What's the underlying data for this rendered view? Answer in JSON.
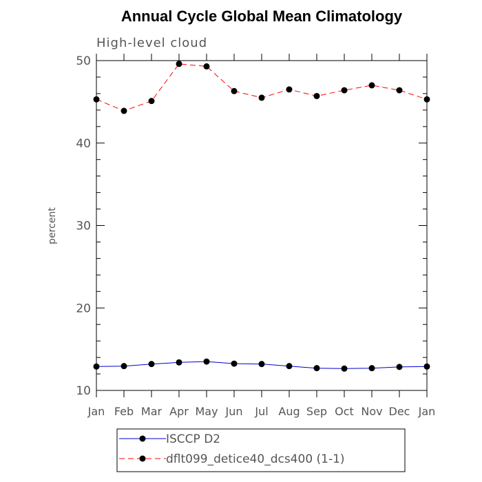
{
  "chart_data": {
    "type": "line",
    "title": "Annual Cycle Global Mean Climatology",
    "subtitle": "High-level cloud",
    "xlabel": "",
    "ylabel": "percent",
    "categories": [
      "Jan",
      "Feb",
      "Mar",
      "Apr",
      "May",
      "Jun",
      "Jul",
      "Aug",
      "Sep",
      "Oct",
      "Nov",
      "Dec",
      "Jan"
    ],
    "ylim": [
      10,
      50
    ],
    "yticks": [
      10,
      20,
      30,
      40,
      50
    ],
    "grid": false,
    "legend_position": "bottom",
    "series": [
      {
        "name": "ISCCP D2",
        "color": "#0000cc",
        "line_style": "solid",
        "values": [
          12.9,
          12.95,
          13.2,
          13.4,
          13.5,
          13.25,
          13.2,
          12.95,
          12.7,
          12.65,
          12.7,
          12.85,
          12.9
        ]
      },
      {
        "name": "dflt099_detice40_dcs400 (1-1)",
        "color": "#ff0000",
        "line_style": "dashed",
        "values": [
          45.3,
          43.9,
          45.1,
          49.6,
          49.3,
          46.3,
          45.5,
          46.5,
          45.7,
          46.4,
          47.0,
          46.4,
          45.3
        ]
      }
    ]
  }
}
